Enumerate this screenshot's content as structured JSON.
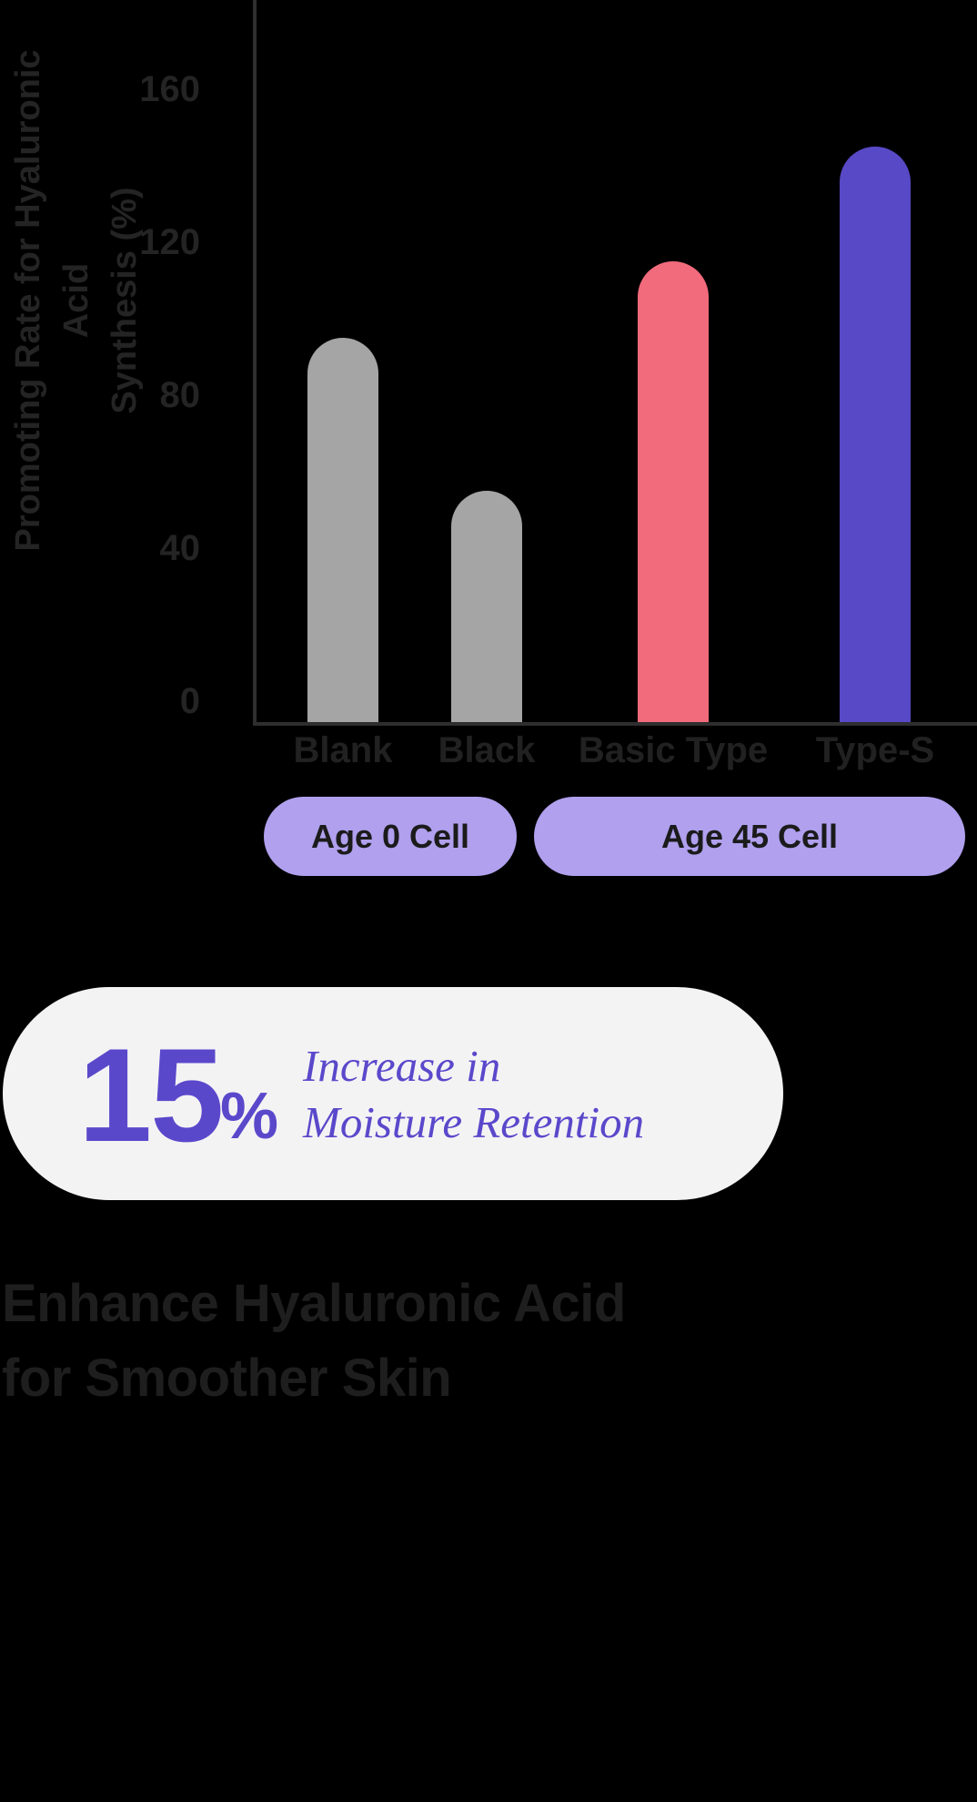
{
  "background_color": "#000000",
  "chart_data": {
    "type": "bar",
    "title": "",
    "xlabel": "",
    "ylabel": "Promoting Rate for Hyaluronic Acid Synthesis (%)",
    "ylabel_lines": [
      "Promoting Rate for Hyaluronic Acid",
      "Synthesis (%)"
    ],
    "categories": [
      "Blank",
      "Black",
      "Basic Type",
      "Type-S"
    ],
    "values": [
      95,
      55,
      115,
      145
    ],
    "bar_colors": [
      "#a5a5a5",
      "#a5a5a5",
      "#f16b7c",
      "#5849c6"
    ],
    "yticks": [
      0,
      40,
      80,
      120,
      160
    ],
    "ylim": [
      0,
      175
    ],
    "grid": false,
    "legend": "none",
    "groups": [
      {
        "label": "Age 0 Cell",
        "spans": [
          "Blank",
          "Black"
        ]
      },
      {
        "label": "Age 45 Cell",
        "spans": [
          "Basic Type",
          "Type-S"
        ]
      }
    ]
  },
  "stat_card": {
    "value": "15",
    "unit": "%",
    "line1": "Increase in",
    "line2": "Moisture Retention",
    "text_color": "#5a48cb",
    "card_color": "#f4f3f4"
  },
  "heading": {
    "line1": "Enhance Hyaluronic Acid",
    "line2": "for Smoother Skin",
    "color": "#1e1e1e"
  }
}
